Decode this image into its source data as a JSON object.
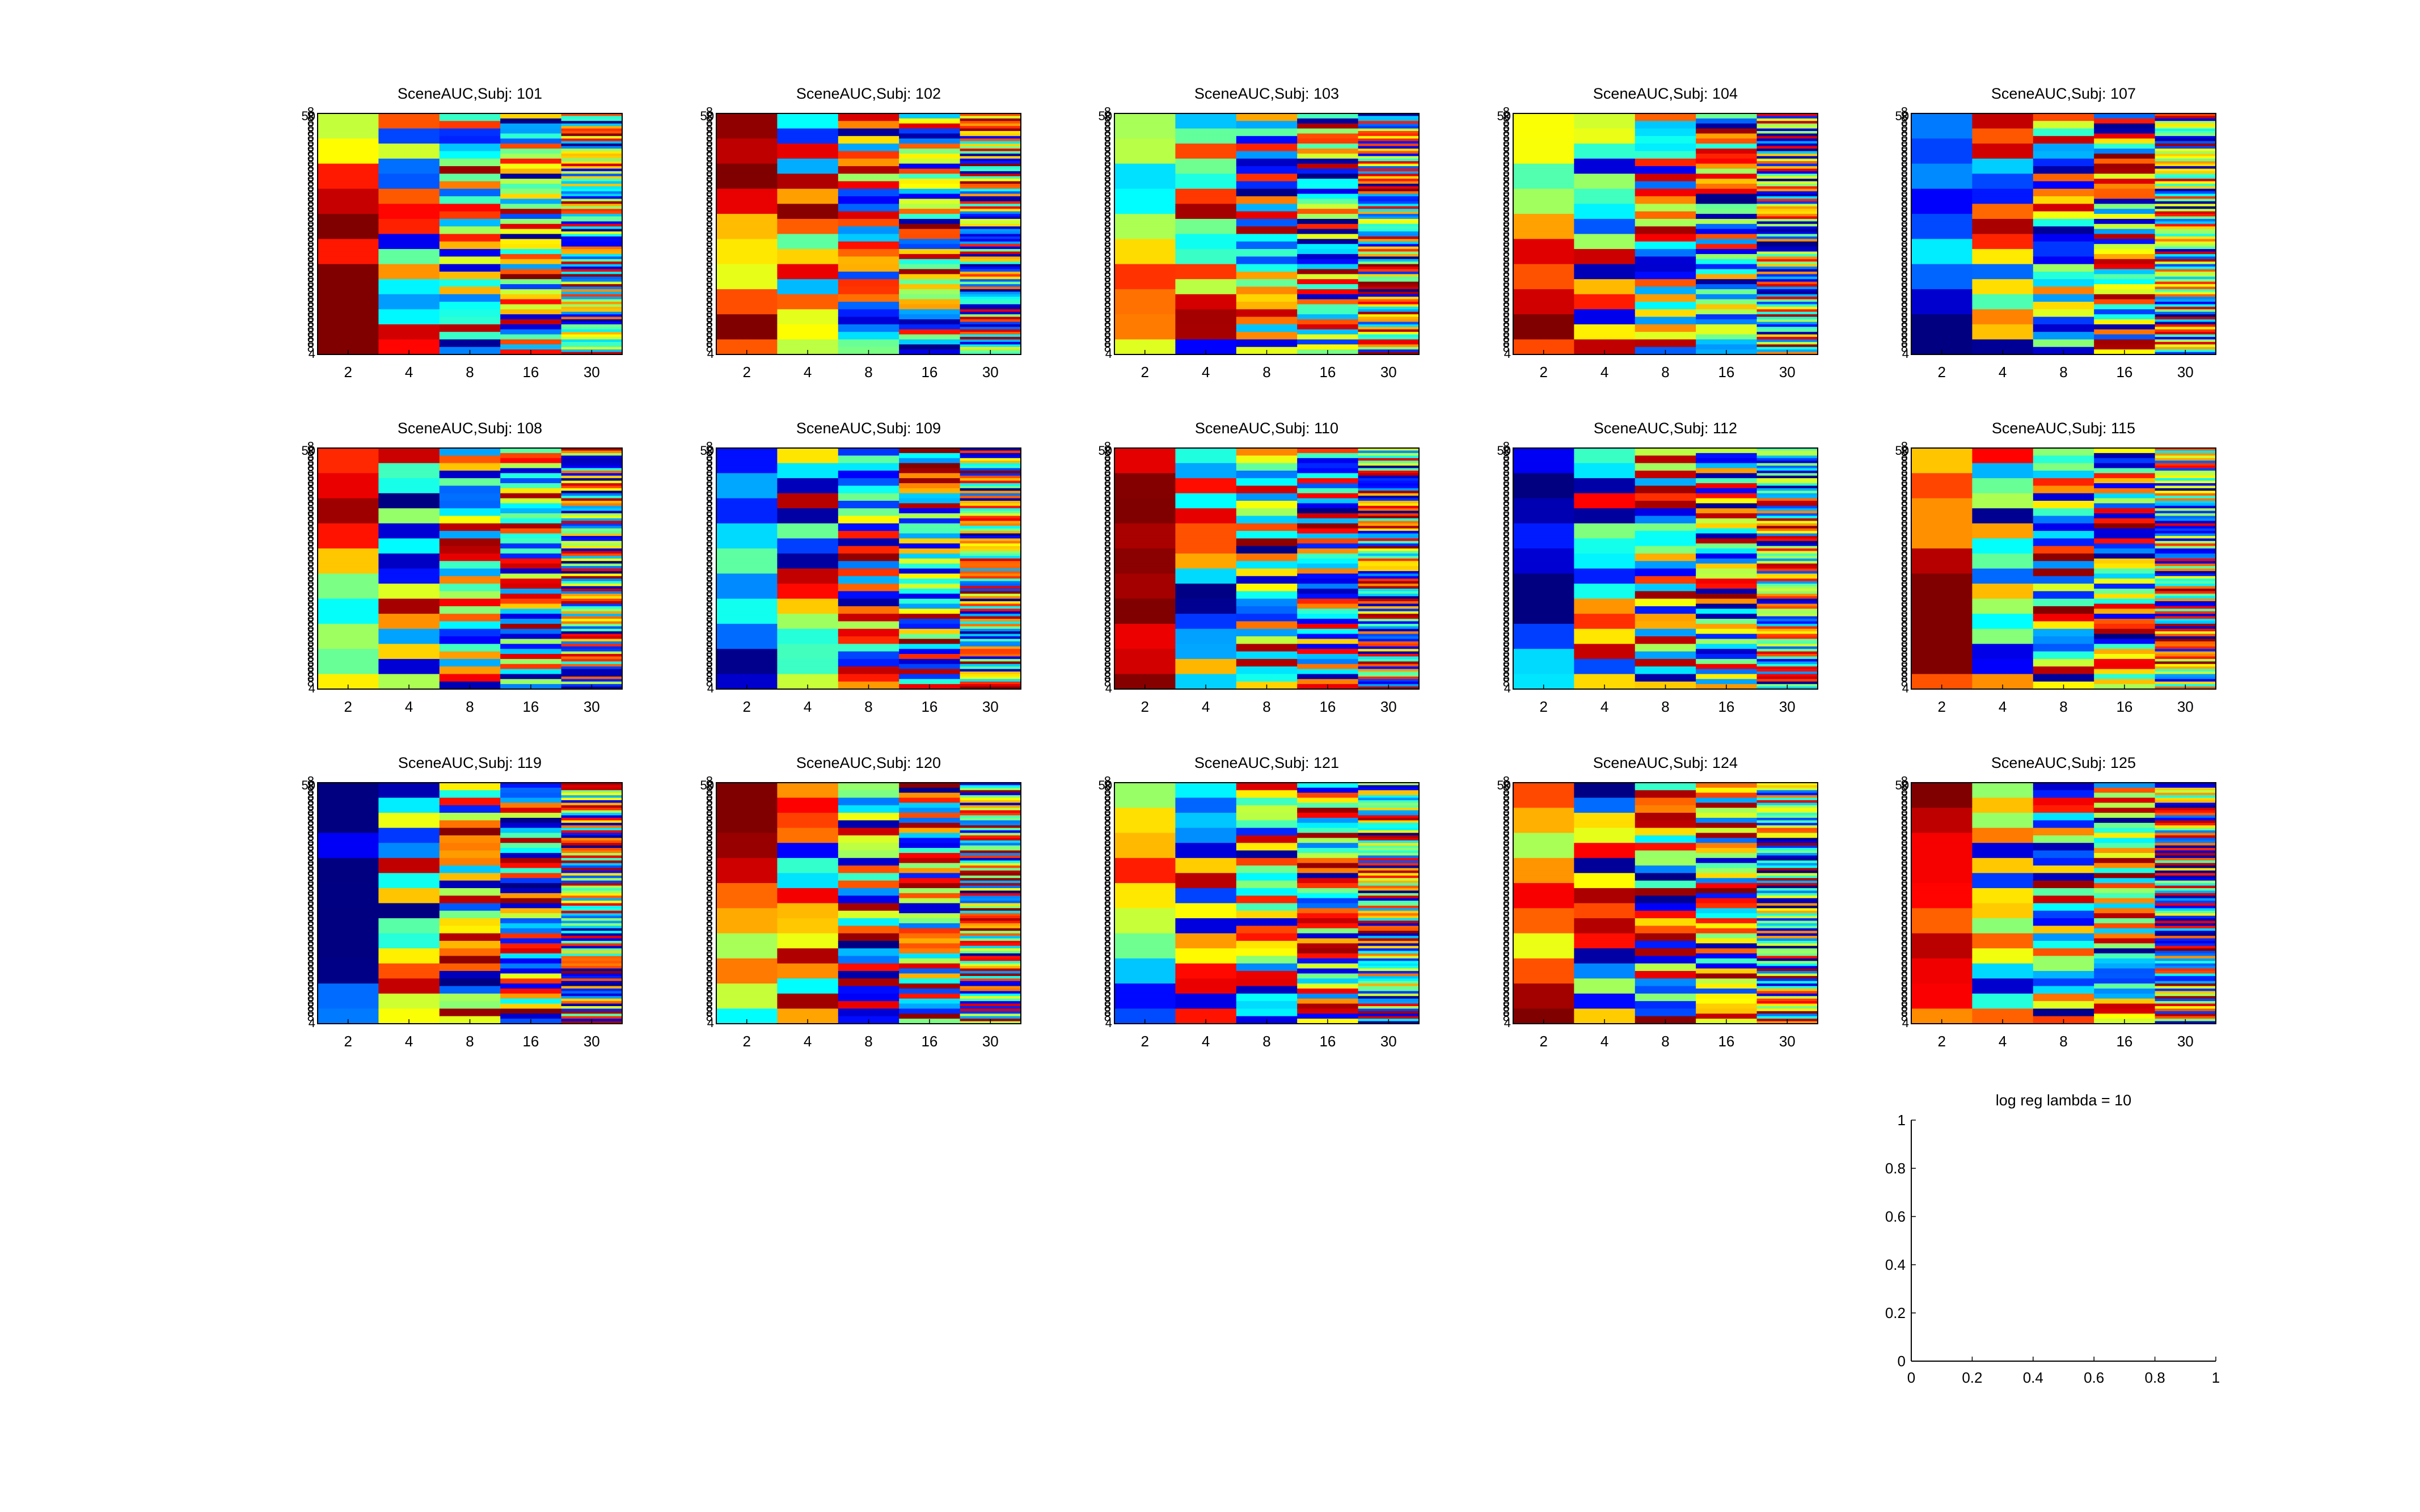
{
  "figure": {
    "colormap": "jet",
    "panels": [
      {
        "title": "SceneAUC,Subj: 101"
      },
      {
        "title": "SceneAUC,Subj: 102"
      },
      {
        "title": "SceneAUC,Subj: 103"
      },
      {
        "title": "SceneAUC,Subj: 104"
      },
      {
        "title": "SceneAUC,Subj: 107"
      },
      {
        "title": "SceneAUC,Subj: 108"
      },
      {
        "title": "SceneAUC,Subj: 109"
      },
      {
        "title": "SceneAUC,Subj: 110"
      },
      {
        "title": "SceneAUC,Subj: 112"
      },
      {
        "title": "SceneAUC,Subj: 115"
      },
      {
        "title": "SceneAUC,Subj: 119"
      },
      {
        "title": "SceneAUC,Subj: 120"
      },
      {
        "title": "SceneAUC,Subj: 121"
      },
      {
        "title": "SceneAUC,Subj: 124"
      },
      {
        "title": "SceneAUC,Subj: 125"
      }
    ],
    "heatmap_x_ticks": [
      "2",
      "4",
      "8",
      "16",
      "30"
    ],
    "heatmap_y_top_label": "50",
    "heatmap_y_bottom_label": "4",
    "extra_axes": {
      "title": "log reg lambda = 10",
      "x_ticks": [
        "0",
        "0.2",
        "0.4",
        "0.6",
        "0.8",
        "1"
      ],
      "y_ticks": [
        "0",
        "0.2",
        "0.4",
        "0.6",
        "0.8",
        "1"
      ]
    }
  },
  "chart_data": {
    "type": "heatmap",
    "description": "15 heatmap subplots of SceneAUC per subject; columns are 2, 4, 8, 16, 30; many rows per subplot; jet colormap",
    "columns": [
      "2",
      "4",
      "8",
      "16",
      "30"
    ],
    "subjects": [
      "101",
      "102",
      "103",
      "104",
      "107",
      "108",
      "109",
      "110",
      "112",
      "115",
      "119",
      "120",
      "121",
      "124",
      "125"
    ],
    "extra_plot": {
      "type": "line",
      "title": "log reg lambda = 10",
      "xlim": [
        0,
        1
      ],
      "ylim": [
        0,
        1
      ],
      "series": []
    }
  }
}
